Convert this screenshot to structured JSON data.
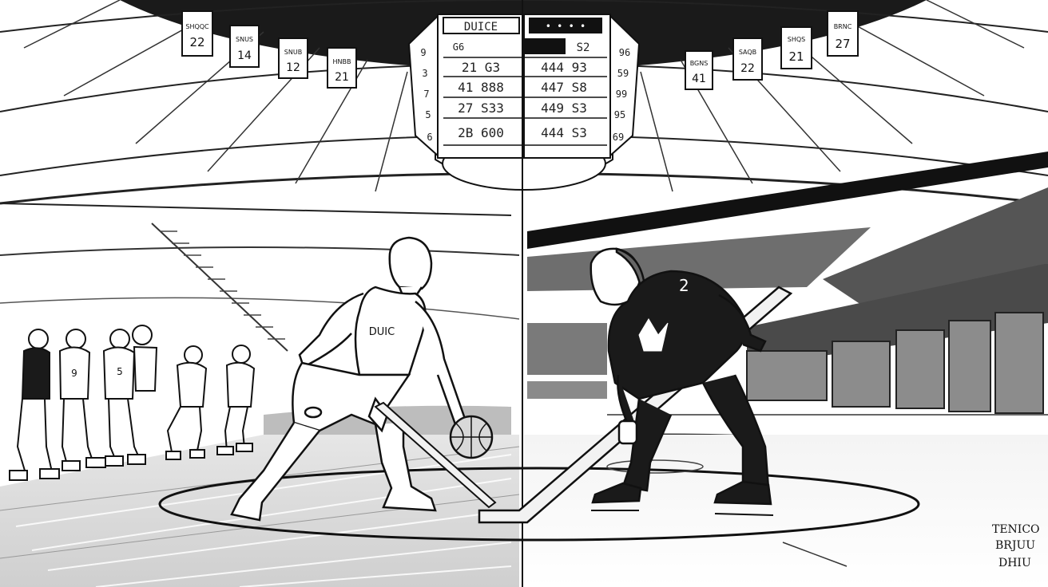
{
  "scoreboard": {
    "header_left": "DUICE",
    "header_right": "• • • •",
    "label_left": "G6",
    "label_right": "S2",
    "rows": [
      {
        "left": "21  G3",
        "right": "444  93"
      },
      {
        "left": "41  888",
        "right": "447  S8"
      },
      {
        "left": "27  S33",
        "right": "449  S3"
      },
      {
        "left": "2B  600",
        "right": "444  S3"
      }
    ],
    "side_left": [
      "9",
      "3",
      "7",
      "5",
      "6"
    ],
    "side_right": [
      "96",
      "59",
      "99",
      "95",
      "69"
    ]
  },
  "banners_left": [
    {
      "top": "SHQQC",
      "num": "22"
    },
    {
      "top": "SNUS",
      "num": "14"
    },
    {
      "top": "SNUB",
      "num": "12"
    },
    {
      "top": "HNBB",
      "num": "21"
    }
  ],
  "banners_right": [
    {
      "top": "BGNS",
      "num": "41"
    },
    {
      "top": "SAQB",
      "num": "22"
    },
    {
      "top": "SHQS",
      "num": "21"
    },
    {
      "top": "BRNC",
      "num": "27"
    }
  ],
  "basketball_player": {
    "jersey": "DUIC"
  },
  "hockey_player": {
    "jersey_number": "2"
  },
  "bench_jerseys": [
    "9",
    "5"
  ],
  "signature": [
    "TENICO",
    "BRJUU",
    "DHIU"
  ]
}
